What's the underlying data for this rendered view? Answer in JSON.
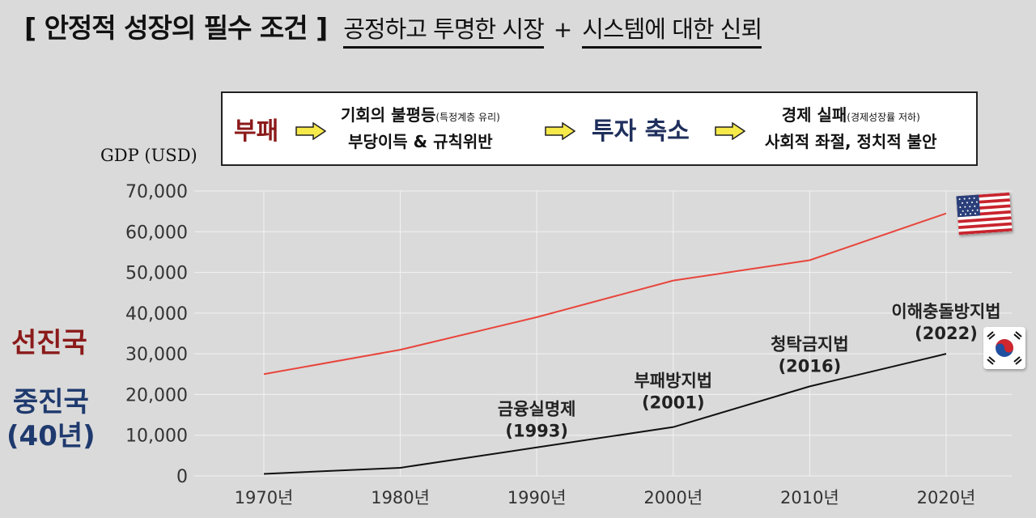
{
  "title": {
    "main": "[ 안정적 성장의 필수 조건 ]",
    "sub1": "공정하고 투명한 시장",
    "plus": "+",
    "sub2": "시스템에 대한 신뢰"
  },
  "flow": {
    "step1": "부패",
    "step2_line1_main": "기회의 불평등",
    "step2_line1_note": "(특정계층 유리)",
    "step2_line2": "부당이득 & 규칙위반",
    "step3": "투자 축소",
    "step4_line1_main": "경제 실패",
    "step4_line1_note": "(경제성장률 저하)",
    "step4_line2": "사회적 좌절, 정치적 불안"
  },
  "side_labels": {
    "developed": "선진국",
    "developing_line1": "중진국",
    "developing_line2": "(40년)"
  },
  "colors": {
    "developed": "#e8453c",
    "developing": "#111111",
    "red_text": "#8b1a1a",
    "navy_text": "#1f3a6e"
  },
  "icons": {
    "us": "us-flag-icon",
    "kr": "kr-flag-icon",
    "arrow": "yellow-arrow-icon"
  },
  "chart_data": {
    "type": "line",
    "ylabel": "GDP (USD)",
    "xlabel": "",
    "categories": [
      "1970년",
      "1980년",
      "1990년",
      "2000년",
      "2010년",
      "2020년"
    ],
    "ylim": [
      0,
      70000
    ],
    "yticks": [
      "0",
      "10,000",
      "20,000",
      "30,000",
      "40,000",
      "50,000",
      "60,000",
      "70,000"
    ],
    "grid": true,
    "series": [
      {
        "values": [
          25000,
          31000,
          39000,
          48000,
          53000,
          64500
        ]
      },
      {
        "values": [
          500,
          2000,
          7000,
          12000,
          22000,
          30000
        ]
      }
    ],
    "annotations": [
      {
        "line1": "금융실명제",
        "line2": "(1993)",
        "x": "1990년",
        "y": 9000
      },
      {
        "line1": "부패방지법",
        "line2": "(2001)",
        "x": "2000년",
        "y": 16000
      },
      {
        "line1": "청탁금지법",
        "line2": "(2016)",
        "x": "2010년",
        "y": 25000
      },
      {
        "line1": "이해충돌방지법",
        "line2": "(2022)",
        "x": "2020년",
        "y": 33000
      }
    ]
  }
}
